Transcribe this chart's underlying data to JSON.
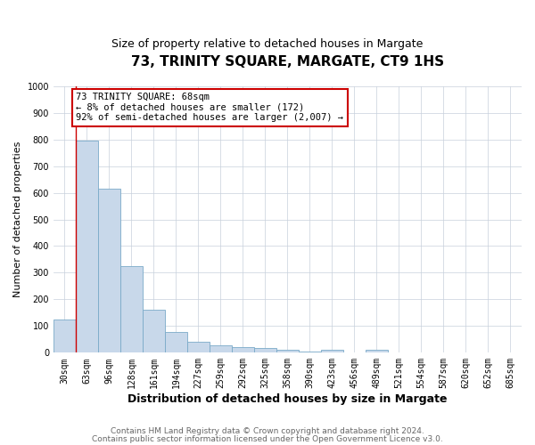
{
  "title": "73, TRINITY SQUARE, MARGATE, CT9 1HS",
  "subtitle": "Size of property relative to detached houses in Margate",
  "xlabel": "Distribution of detached houses by size in Margate",
  "ylabel": "Number of detached properties",
  "categories": [
    "30sqm",
    "63sqm",
    "96sqm",
    "128sqm",
    "161sqm",
    "194sqm",
    "227sqm",
    "259sqm",
    "292sqm",
    "325sqm",
    "358sqm",
    "390sqm",
    "423sqm",
    "456sqm",
    "489sqm",
    "521sqm",
    "554sqm",
    "587sqm",
    "620sqm",
    "652sqm",
    "685sqm"
  ],
  "values": [
    125,
    795,
    615,
    325,
    160,
    77,
    40,
    28,
    22,
    17,
    12,
    5,
    10,
    0,
    10,
    0,
    0,
    0,
    0,
    0,
    0
  ],
  "bar_color": "#c8d8ea",
  "bar_edge_color": "#7aaac8",
  "grid_color": "#c8d0dc",
  "background_color": "#ffffff",
  "annotation_line1": "73 TRINITY SQUARE: 68sqm",
  "annotation_line2": "← 8% of detached houses are smaller (172)",
  "annotation_line3": "92% of semi-detached houses are larger (2,007) →",
  "annotation_box_color": "#ffffff",
  "annotation_box_edge_color": "#cc0000",
  "red_line_x": 0.5,
  "red_line_color": "#cc0000",
  "ylim": [
    0,
    1000
  ],
  "yticks": [
    0,
    100,
    200,
    300,
    400,
    500,
    600,
    700,
    800,
    900,
    1000
  ],
  "footer_line1": "Contains HM Land Registry data © Crown copyright and database right 2024.",
  "footer_line2": "Contains public sector information licensed under the Open Government Licence v3.0.",
  "title_fontsize": 11,
  "subtitle_fontsize": 9,
  "xlabel_fontsize": 9,
  "ylabel_fontsize": 8,
  "tick_fontsize": 7,
  "annotation_fontsize": 7.5,
  "footer_fontsize": 6.5
}
